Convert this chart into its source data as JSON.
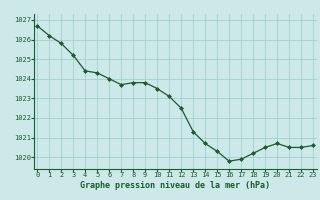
{
  "x": [
    0,
    1,
    2,
    3,
    4,
    5,
    6,
    7,
    8,
    9,
    10,
    11,
    12,
    13,
    14,
    15,
    16,
    17,
    18,
    19,
    20,
    21,
    22,
    23
  ],
  "y": [
    1026.7,
    1026.2,
    1025.8,
    1025.2,
    1024.4,
    1024.3,
    1024.0,
    1023.7,
    1023.8,
    1023.8,
    1023.5,
    1023.1,
    1022.5,
    1021.3,
    1020.7,
    1020.3,
    1019.8,
    1019.9,
    1020.2,
    1020.5,
    1020.7,
    1020.5,
    1020.5,
    1020.6
  ],
  "line_color": "#1a5c2a",
  "marker": "D",
  "marker_size": 2.0,
  "bg_color": "#cce8e8",
  "grid_color": "#99cccc",
  "xlabel": "Graphe pression niveau de la mer (hPa)",
  "xlabel_color": "#1a5c2a",
  "tick_color": "#1a5c2a",
  "ylim_min": 1019.4,
  "ylim_max": 1027.3,
  "xlim_min": -0.3,
  "xlim_max": 23.3,
  "yticks": [
    1020,
    1021,
    1022,
    1023,
    1024,
    1025,
    1026,
    1027
  ],
  "xticks": [
    0,
    1,
    2,
    3,
    4,
    5,
    6,
    7,
    8,
    9,
    10,
    11,
    12,
    13,
    14,
    15,
    16,
    17,
    18,
    19,
    20,
    21,
    22,
    23
  ],
  "tick_fontsize": 5.0,
  "xlabel_fontsize": 6.0
}
